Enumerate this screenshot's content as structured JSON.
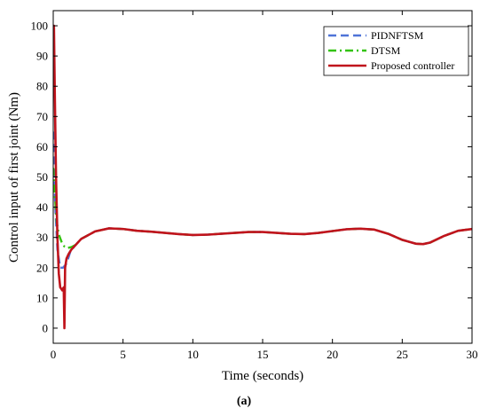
{
  "chart_data": {
    "type": "line",
    "title": "",
    "xlabel": "Time (seconds)",
    "ylabel": "Control input of first joint (Nm)",
    "xlim": [
      0,
      30
    ],
    "ylim": [
      -5,
      105
    ],
    "xticks": [
      0,
      5,
      10,
      15,
      20,
      25,
      30
    ],
    "yticks": [
      0,
      10,
      20,
      30,
      40,
      50,
      60,
      70,
      80,
      90,
      100
    ],
    "grid": false,
    "legend_position": "top-right",
    "series": [
      {
        "name": "PIDNFTSM",
        "color": "#4f74d8",
        "dash": "dashed",
        "points": [
          [
            0,
            65
          ],
          [
            0.15,
            40
          ],
          [
            0.3,
            26
          ],
          [
            0.5,
            20
          ],
          [
            0.7,
            20
          ],
          [
            0.9,
            21
          ],
          [
            1.0,
            22
          ],
          [
            1.2,
            25
          ],
          [
            1.5,
            27
          ],
          [
            2,
            29.5
          ],
          [
            3,
            32
          ],
          [
            4,
            33
          ],
          [
            5,
            32.8
          ],
          [
            6,
            32.2
          ],
          [
            7,
            31.9
          ],
          [
            8,
            31.5
          ],
          [
            9,
            31.1
          ],
          [
            10,
            30.8
          ],
          [
            11,
            30.9
          ],
          [
            12,
            31.2
          ],
          [
            13,
            31.5
          ],
          [
            14,
            31.8
          ],
          [
            15,
            31.8
          ],
          [
            16,
            31.5
          ],
          [
            17,
            31.2
          ],
          [
            18,
            31.1
          ],
          [
            19,
            31.5
          ],
          [
            20,
            32.1
          ],
          [
            21,
            32.7
          ],
          [
            22,
            32.9
          ],
          [
            23,
            32.6
          ],
          [
            24,
            31.2
          ],
          [
            25,
            29.2
          ],
          [
            26,
            27.9
          ],
          [
            26.5,
            27.8
          ],
          [
            27,
            28.3
          ],
          [
            28,
            30.5
          ],
          [
            29,
            32.2
          ],
          [
            30,
            32.8
          ]
        ]
      },
      {
        "name": "DTSM",
        "color": "#33c30f",
        "dash": "dashdot",
        "points": [
          [
            0,
            53
          ],
          [
            0.1,
            45
          ],
          [
            0.25,
            35
          ],
          [
            0.4,
            31
          ],
          [
            0.6,
            28.5
          ],
          [
            0.8,
            27
          ],
          [
            1.0,
            26.5
          ],
          [
            1.3,
            26.8
          ],
          [
            1.6,
            27.5
          ],
          [
            2,
            29.5
          ],
          [
            3,
            32
          ],
          [
            4,
            33
          ],
          [
            5,
            32.8
          ],
          [
            6,
            32.2
          ],
          [
            7,
            31.9
          ],
          [
            8,
            31.5
          ],
          [
            9,
            31.1
          ],
          [
            10,
            30.8
          ],
          [
            11,
            30.9
          ],
          [
            12,
            31.2
          ],
          [
            13,
            31.5
          ],
          [
            14,
            31.8
          ],
          [
            15,
            31.8
          ],
          [
            16,
            31.5
          ],
          [
            17,
            31.2
          ],
          [
            18,
            31.1
          ],
          [
            19,
            31.5
          ],
          [
            20,
            32.1
          ],
          [
            21,
            32.7
          ],
          [
            22,
            32.9
          ],
          [
            23,
            32.6
          ],
          [
            24,
            31.2
          ],
          [
            25,
            29.2
          ],
          [
            26,
            27.9
          ],
          [
            26.5,
            27.8
          ],
          [
            27,
            28.3
          ],
          [
            28,
            30.5
          ],
          [
            29,
            32.2
          ],
          [
            30,
            32.8
          ]
        ]
      },
      {
        "name": "Proposed controller",
        "color": "#c0141c",
        "dash": "solid",
        "points": [
          [
            0,
            100
          ],
          [
            0.05,
            100
          ],
          [
            0.12,
            75
          ],
          [
            0.2,
            50
          ],
          [
            0.3,
            30
          ],
          [
            0.4,
            18
          ],
          [
            0.5,
            13.5
          ],
          [
            0.65,
            12.5
          ],
          [
            0.75,
            13.5
          ],
          [
            0.8,
            0
          ],
          [
            0.85,
            20
          ],
          [
            0.95,
            23
          ],
          [
            1.1,
            24.5
          ],
          [
            1.3,
            26
          ],
          [
            1.6,
            27.5
          ],
          [
            2,
            29.5
          ],
          [
            3,
            32
          ],
          [
            4,
            33
          ],
          [
            5,
            32.8
          ],
          [
            6,
            32.2
          ],
          [
            7,
            31.9
          ],
          [
            8,
            31.5
          ],
          [
            9,
            31.1
          ],
          [
            10,
            30.8
          ],
          [
            11,
            30.9
          ],
          [
            12,
            31.2
          ],
          [
            13,
            31.5
          ],
          [
            14,
            31.8
          ],
          [
            15,
            31.8
          ],
          [
            16,
            31.5
          ],
          [
            17,
            31.2
          ],
          [
            18,
            31.1
          ],
          [
            19,
            31.5
          ],
          [
            20,
            32.1
          ],
          [
            21,
            32.7
          ],
          [
            22,
            32.9
          ],
          [
            23,
            32.6
          ],
          [
            24,
            31.2
          ],
          [
            25,
            29.2
          ],
          [
            26,
            27.9
          ],
          [
            26.5,
            27.8
          ],
          [
            27,
            28.3
          ],
          [
            28,
            30.5
          ],
          [
            29,
            32.2
          ],
          [
            30,
            32.8
          ]
        ]
      }
    ],
    "caption": "(a)"
  }
}
